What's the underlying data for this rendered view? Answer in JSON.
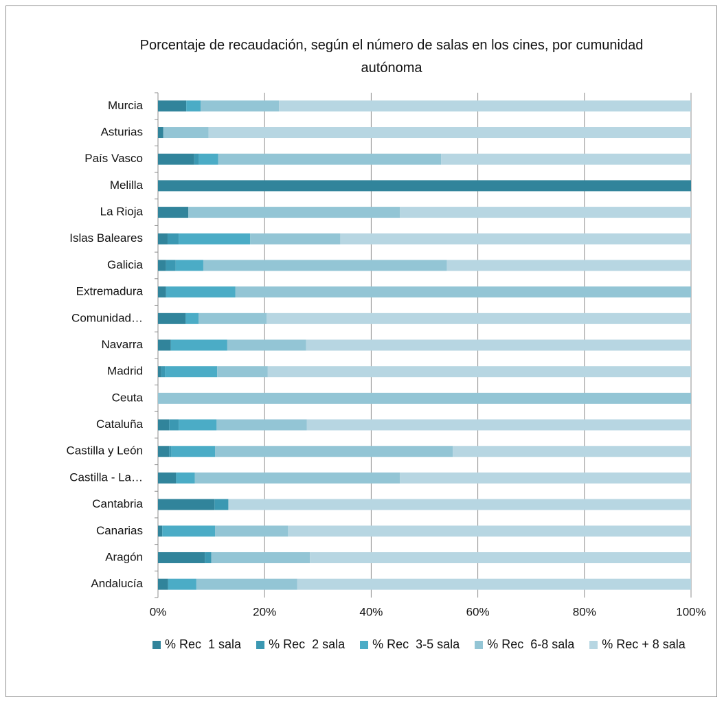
{
  "chart_data": {
    "type": "stacked_bar_horizontal_percent",
    "title": "Porcentaje de recaudación, según el número de salas en los cines, por cumunidad autónoma",
    "categories": [
      "Murcia",
      "Asturias",
      "País Vasco",
      "Melilla",
      "La Rioja",
      "Islas Baleares",
      "Galicia",
      "Extremadura",
      "Comunidad…",
      "Navarra",
      "Madrid",
      "Ceuta",
      "Cataluña",
      "Castilla y León",
      "Castilla - La…",
      "Cantabria",
      "Canarias",
      "Aragón",
      "Andalucía"
    ],
    "series": [
      {
        "name": "% Rec  1 sala",
        "color": "#31849b",
        "values": [
          5.3,
          1.0,
          6.8,
          100,
          5.7,
          1.8,
          1.5,
          1.5,
          5.2,
          2.4,
          0.6,
          0,
          2.1,
          2.1,
          3.4,
          10.6,
          0.8,
          8.8,
          1.9
        ]
      },
      {
        "name": "% Rec  2 sala",
        "color": "#3b98b2",
        "values": [
          0,
          0,
          0.9,
          0,
          0,
          2.1,
          1.8,
          0,
          0,
          0,
          0.7,
          0,
          1.8,
          0.4,
          0,
          2.6,
          0,
          1.2,
          0
        ]
      },
      {
        "name": "% Rec  3-5 sala",
        "color": "#4bacc6",
        "values": [
          2.7,
          0,
          3.6,
          0,
          0,
          13.4,
          5.2,
          13.0,
          2.4,
          10.6,
          9.8,
          0,
          7.1,
          8.2,
          3.5,
          0,
          9.9,
          0,
          5.3
        ]
      },
      {
        "name": "% Rec  6-8 sala",
        "color": "#93c5d5",
        "values": [
          14.7,
          8.5,
          41.8,
          0,
          39.7,
          16.9,
          45.7,
          85.5,
          12.8,
          14.8,
          9.5,
          100,
          16.9,
          44.6,
          38.5,
          0,
          13.7,
          18.5,
          18.9
        ]
      },
      {
        "name": "% Rec + 8 sala",
        "color": "#b7d6e2",
        "values": [
          77.3,
          90.5,
          46.9,
          0,
          54.6,
          65.8,
          45.8,
          0,
          79.6,
          72.2,
          79.4,
          0,
          72.1,
          44.7,
          54.6,
          86.8,
          75.6,
          71.5,
          73.9
        ]
      }
    ],
    "xlim": [
      0,
      100
    ],
    "xticks": [
      {
        "value": 0,
        "label": "0%"
      },
      {
        "value": 20,
        "label": "20%"
      },
      {
        "value": 40,
        "label": "40%"
      },
      {
        "value": 60,
        "label": "60%"
      },
      {
        "value": 80,
        "label": "80%"
      },
      {
        "value": 100,
        "label": "100%"
      }
    ],
    "grid": true,
    "legend": "bottom"
  }
}
